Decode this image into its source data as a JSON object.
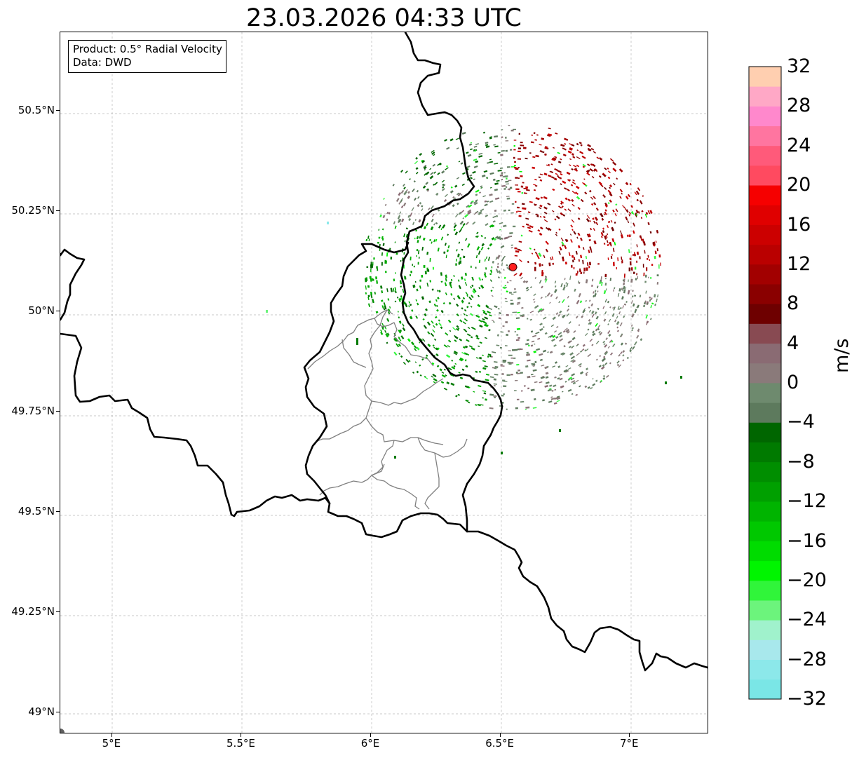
{
  "title": "23.03.2026 04:33 UTC",
  "info": {
    "product": "Product: 0.5° Radial Velocity",
    "source": "Data: DWD"
  },
  "axes": {
    "lon_range": [
      4.8,
      7.3
    ],
    "lat_range": [
      48.95,
      50.695
    ],
    "x_ticks": [
      {
        "value": 5.0,
        "label": "5°E"
      },
      {
        "value": 5.5,
        "label": "5.5°E"
      },
      {
        "value": 6.0,
        "label": "6°E"
      },
      {
        "value": 6.5,
        "label": "6.5°E"
      },
      {
        "value": 7.0,
        "label": "7°E"
      }
    ],
    "y_ticks": [
      {
        "value": 50.5,
        "label": "50.5°N"
      },
      {
        "value": 50.25,
        "label": "50.25°N"
      },
      {
        "value": 50.0,
        "label": "50°N"
      },
      {
        "value": 49.75,
        "label": "49.75°N"
      },
      {
        "value": 49.5,
        "label": "49.5°N"
      },
      {
        "value": 49.25,
        "label": "49.25°N"
      },
      {
        "value": 49.0,
        "label": "49°N"
      }
    ]
  },
  "radar": {
    "name": "radar-site",
    "lon": 6.548,
    "lat": 50.11,
    "marker_color": "#ff2020",
    "coverage_radius_km": 125
  },
  "colorbar": {
    "label": "m/s",
    "min": -32,
    "max": 32,
    "step": 2,
    "ticks": [
      {
        "value": 32,
        "label": "32"
      },
      {
        "value": 28,
        "label": "28"
      },
      {
        "value": 24,
        "label": "24"
      },
      {
        "value": 20,
        "label": "20"
      },
      {
        "value": 16,
        "label": "16"
      },
      {
        "value": 12,
        "label": "12"
      },
      {
        "value": 8,
        "label": "8"
      },
      {
        "value": 4,
        "label": "4"
      },
      {
        "value": 0,
        "label": "0"
      },
      {
        "value": -4,
        "label": "−4"
      },
      {
        "value": -8,
        "label": "−8"
      },
      {
        "value": -12,
        "label": "−12"
      },
      {
        "value": -16,
        "label": "−16"
      },
      {
        "value": -20,
        "label": "−20"
      },
      {
        "value": -24,
        "label": "−24"
      },
      {
        "value": -28,
        "label": "−28"
      },
      {
        "value": -32,
        "label": "−32"
      }
    ],
    "colors": [
      "#7ae6e6",
      "#8ce8ea",
      "#a8e8ec",
      "#a0f2cc",
      "#6cf47c",
      "#30f53a",
      "#00f500",
      "#00dc00",
      "#00c800",
      "#00b400",
      "#00a000",
      "#008e00",
      "#007a00",
      "#006600",
      "#5d7a5d",
      "#6e8a6e",
      "#8a7a7a",
      "#8a6b73",
      "#884a52",
      "#6e0000",
      "#8a0000",
      "#a20000",
      "#ba0000",
      "#cc0000",
      "#e00000",
      "#f60000",
      "#ff4a60",
      "#ff5a7a",
      "#ff75a0",
      "#ff88cc",
      "#ffa8c6",
      "#ffcfb0"
    ]
  }
}
